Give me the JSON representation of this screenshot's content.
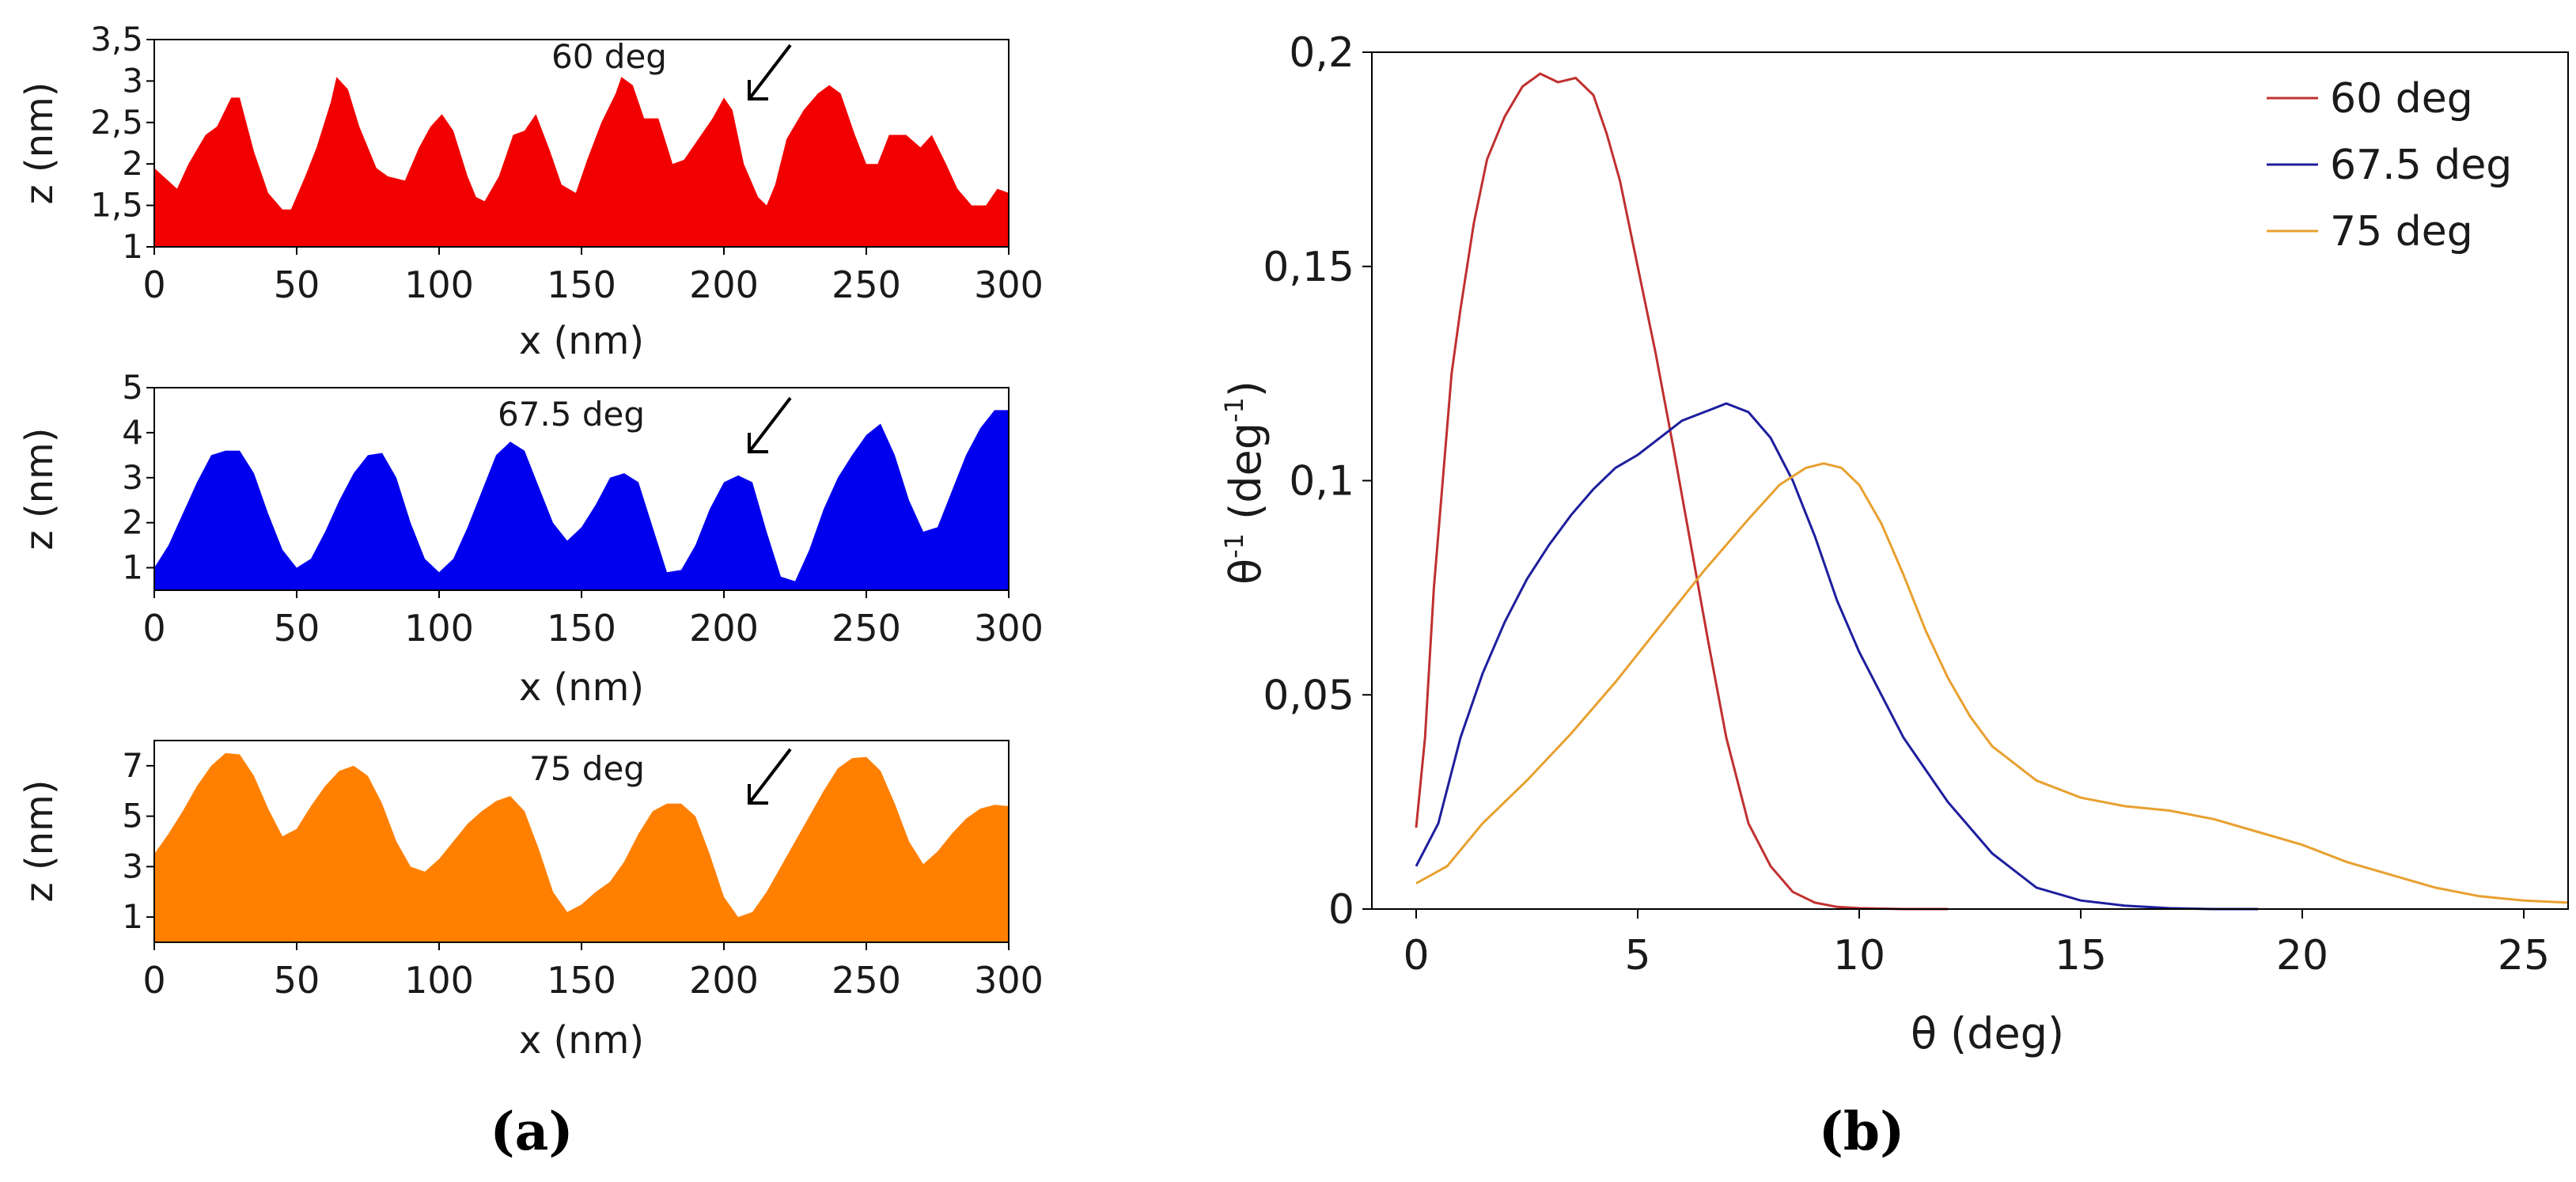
{
  "chart_data": [
    {
      "type": "area",
      "panel": "(a)",
      "annotation": "60 deg",
      "color": "#f20000",
      "xlabel": "x (nm)",
      "ylabel": "z (nm)",
      "xlim": [
        0,
        300
      ],
      "ylim": [
        1,
        3.5
      ],
      "xticks": [
        "0",
        "50",
        "100",
        "150",
        "200",
        "250",
        "300"
      ],
      "yticks": [
        "1",
        "1,5",
        "2",
        "2,5",
        "3",
        "3,5"
      ],
      "ytick_values": [
        1,
        1.5,
        2,
        2.5,
        3,
        3.5
      ],
      "x": [
        0,
        8,
        12,
        18,
        22,
        27,
        30,
        35,
        40,
        45,
        48,
        53,
        57,
        62,
        64,
        68,
        72,
        78,
        82,
        88,
        93,
        97,
        101,
        105,
        110,
        113,
        116,
        121,
        126,
        130,
        134,
        139,
        143,
        148,
        152,
        157,
        162,
        164,
        168,
        172,
        177,
        182,
        186,
        191,
        196,
        200,
        203,
        207,
        212,
        215,
        218,
        222,
        228,
        233,
        237,
        241,
        246,
        250,
        254,
        258,
        264,
        269,
        273,
        278,
        282,
        287,
        292,
        296,
        300
      ],
      "values": [
        1.95,
        1.7,
        2.0,
        2.35,
        2.45,
        2.8,
        2.8,
        2.15,
        1.65,
        1.45,
        1.45,
        1.85,
        2.2,
        2.75,
        3.05,
        2.9,
        2.45,
        1.95,
        1.85,
        1.8,
        2.2,
        2.45,
        2.6,
        2.4,
        1.85,
        1.6,
        1.55,
        1.85,
        2.35,
        2.4,
        2.6,
        2.15,
        1.75,
        1.65,
        2.05,
        2.5,
        2.85,
        3.05,
        2.95,
        2.55,
        2.55,
        2.0,
        2.05,
        2.3,
        2.55,
        2.8,
        2.65,
        2.0,
        1.6,
        1.5,
        1.75,
        2.3,
        2.65,
        2.85,
        2.95,
        2.85,
        2.35,
        2.0,
        2.0,
        2.35,
        2.35,
        2.2,
        2.35,
        2.0,
        1.7,
        1.5,
        1.5,
        1.7,
        1.65
      ]
    },
    {
      "type": "area",
      "panel": "(a)",
      "annotation": "67.5 deg",
      "color": "#0000ee",
      "xlabel": "x (nm)",
      "ylabel": "z (nm)",
      "xlim": [
        0,
        300
      ],
      "ylim": [
        0.5,
        5
      ],
      "xticks": [
        "0",
        "50",
        "100",
        "150",
        "200",
        "250",
        "300"
      ],
      "yticks": [
        "1",
        "2",
        "3",
        "4",
        "5"
      ],
      "ytick_values": [
        1,
        2,
        3,
        4,
        5
      ],
      "x": [
        0,
        5,
        10,
        15,
        20,
        25,
        30,
        35,
        40,
        45,
        50,
        55,
        60,
        65,
        70,
        75,
        80,
        85,
        90,
        95,
        100,
        105,
        110,
        115,
        120,
        125,
        130,
        135,
        140,
        145,
        150,
        155,
        160,
        165,
        170,
        175,
        180,
        185,
        190,
        195,
        200,
        205,
        210,
        215,
        220,
        225,
        230,
        235,
        240,
        245,
        250,
        255,
        260,
        265,
        270,
        275,
        280,
        285,
        290,
        295,
        300
      ],
      "values": [
        1.0,
        1.5,
        2.2,
        2.9,
        3.5,
        3.6,
        3.6,
        3.1,
        2.2,
        1.4,
        1.0,
        1.2,
        1.8,
        2.5,
        3.1,
        3.5,
        3.55,
        3.0,
        2.0,
        1.2,
        0.9,
        1.2,
        1.9,
        2.7,
        3.5,
        3.8,
        3.6,
        2.8,
        2.0,
        1.6,
        1.9,
        2.4,
        3.0,
        3.1,
        2.9,
        1.9,
        0.9,
        0.95,
        1.5,
        2.3,
        2.9,
        3.05,
        2.9,
        1.8,
        0.8,
        0.7,
        1.4,
        2.3,
        3.0,
        3.5,
        3.95,
        4.2,
        3.5,
        2.5,
        1.8,
        1.9,
        2.7,
        3.5,
        4.1,
        4.5,
        4.5
      ]
    },
    {
      "type": "area",
      "panel": "(a)",
      "annotation": "75 deg",
      "color": "#ff8000",
      "xlabel": "x (nm)",
      "ylabel": "z (nm)",
      "xlim": [
        0,
        300
      ],
      "ylim": [
        0,
        8
      ],
      "xticks": [
        "0",
        "50",
        "100",
        "150",
        "200",
        "250",
        "300"
      ],
      "yticks": [
        "1",
        "3",
        "5",
        "7"
      ],
      "ytick_values": [
        1,
        3,
        5,
        7
      ],
      "x": [
        0,
        5,
        10,
        15,
        20,
        25,
        30,
        35,
        40,
        45,
        50,
        55,
        60,
        65,
        70,
        75,
        80,
        85,
        90,
        95,
        100,
        105,
        110,
        115,
        120,
        125,
        130,
        135,
        140,
        145,
        150,
        155,
        160,
        165,
        170,
        175,
        180,
        185,
        190,
        195,
        200,
        205,
        210,
        215,
        220,
        225,
        230,
        235,
        240,
        245,
        250,
        255,
        260,
        265,
        270,
        275,
        280,
        285,
        290,
        295,
        300
      ],
      "values": [
        3.5,
        4.3,
        5.2,
        6.2,
        7.0,
        7.5,
        7.45,
        6.6,
        5.3,
        4.2,
        4.5,
        5.4,
        6.2,
        6.8,
        7.0,
        6.6,
        5.5,
        4.0,
        3.0,
        2.8,
        3.3,
        4.0,
        4.7,
        5.2,
        5.6,
        5.8,
        5.2,
        3.7,
        2.0,
        1.2,
        1.5,
        2.0,
        2.4,
        3.2,
        4.3,
        5.2,
        5.5,
        5.5,
        5.0,
        3.5,
        1.8,
        1.0,
        1.2,
        2.0,
        3.0,
        4.0,
        5.0,
        6.0,
        6.9,
        7.3,
        7.35,
        6.8,
        5.5,
        4.0,
        3.1,
        3.6,
        4.3,
        4.9,
        5.3,
        5.45,
        5.4
      ]
    },
    {
      "type": "line",
      "panel": "(b)",
      "xlabel": "θ (deg)",
      "ylabel": "θ",
      "ylabel_sup": "-1",
      "ylabel_rest": " (deg",
      "ylabel_unit_sup": "-1",
      "ylabel_close": ")",
      "xlim": [
        -1,
        26
      ],
      "ylim": [
        0,
        0.2
      ],
      "xticks": [
        "0",
        "5",
        "10",
        "15",
        "20",
        "25"
      ],
      "xtick_values": [
        0,
        5,
        10,
        15,
        20,
        25
      ],
      "yticks": [
        "0",
        "0,05",
        "0,1",
        "0,15",
        "0,2"
      ],
      "ytick_values": [
        0,
        0.05,
        0.1,
        0.15,
        0.2
      ],
      "legend_position": "top-right",
      "series": [
        {
          "name": "60 deg",
          "color": "#c03030",
          "x": [
            0,
            0.2,
            0.4,
            0.6,
            0.8,
            1.0,
            1.3,
            1.6,
            2.0,
            2.4,
            2.8,
            3.2,
            3.6,
            4.0,
            4.3,
            4.6,
            5.0,
            5.4,
            5.8,
            6.2,
            6.6,
            7.0,
            7.5,
            8.0,
            8.5,
            9.0,
            9.5,
            10.0,
            11.0,
            12.0
          ],
          "values": [
            0.019,
            0.04,
            0.075,
            0.1,
            0.125,
            0.14,
            0.16,
            0.175,
            0.185,
            0.192,
            0.195,
            0.193,
            0.194,
            0.19,
            0.181,
            0.17,
            0.15,
            0.13,
            0.108,
            0.085,
            0.062,
            0.04,
            0.02,
            0.01,
            0.004,
            0.0015,
            0.0005,
            0.0002,
            0.0,
            0.0
          ]
        },
        {
          "name": "67.5 deg",
          "color": "#1e1e9e",
          "x": [
            0,
            0.5,
            1,
            1.5,
            2,
            2.5,
            3,
            3.5,
            4,
            4.5,
            5,
            5.5,
            6,
            6.5,
            7,
            7.5,
            8,
            8.5,
            9,
            9.5,
            10,
            11,
            12,
            13,
            14,
            15,
            16,
            17,
            18,
            19
          ],
          "values": [
            0.01,
            0.02,
            0.04,
            0.055,
            0.067,
            0.077,
            0.085,
            0.092,
            0.098,
            0.103,
            0.106,
            0.11,
            0.114,
            0.116,
            0.118,
            0.116,
            0.11,
            0.1,
            0.087,
            0.072,
            0.06,
            0.04,
            0.025,
            0.013,
            0.005,
            0.002,
            0.0008,
            0.0002,
            0.0,
            0.0
          ]
        },
        {
          "name": "75 deg",
          "color": "#e8a030",
          "x": [
            0,
            0.7,
            1.5,
            2.5,
            3.5,
            4.5,
            5.5,
            6.5,
            7.5,
            8.2,
            8.8,
            9.2,
            9.6,
            10.0,
            10.5,
            11.0,
            11.5,
            12.0,
            12.5,
            13.0,
            14.0,
            15.0,
            16.0,
            17.0,
            18.0,
            19.0,
            20.0,
            21.0,
            22.0,
            23.0,
            24.0,
            25.0,
            26.0
          ],
          "values": [
            0.006,
            0.01,
            0.02,
            0.03,
            0.041,
            0.053,
            0.066,
            0.079,
            0.091,
            0.099,
            0.103,
            0.104,
            0.103,
            0.099,
            0.09,
            0.078,
            0.065,
            0.054,
            0.045,
            0.038,
            0.03,
            0.026,
            0.024,
            0.023,
            0.021,
            0.018,
            0.015,
            0.011,
            0.008,
            0.005,
            0.003,
            0.002,
            0.0015
          ]
        }
      ]
    }
  ],
  "labels": {
    "panel_a": "(a)",
    "panel_b": "(b)"
  }
}
